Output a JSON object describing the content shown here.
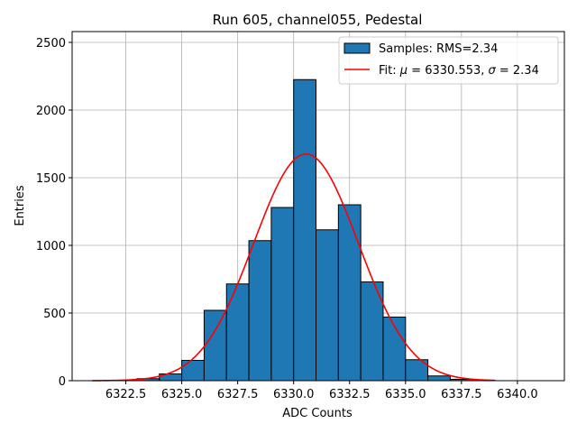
{
  "chart_data": {
    "type": "bar",
    "title": "Run 605, channel055, Pedestal",
    "xlabel": "ADC Counts",
    "ylabel": "Entries",
    "xlim": [
      6320.1,
      6342.1
    ],
    "ylim": [
      0,
      2580
    ],
    "grid": true,
    "xticks": [
      6322.5,
      6325.0,
      6327.5,
      6330.0,
      6332.5,
      6335.0,
      6337.5,
      6340.0
    ],
    "xtick_labels": [
      "6322.5",
      "6325.0",
      "6327.5",
      "6330.0",
      "6332.5",
      "6335.0",
      "6337.5",
      "6340.0"
    ],
    "yticks": [
      0,
      500,
      1000,
      1500,
      2000,
      2500
    ],
    "ytick_labels": [
      "0",
      "500",
      "1000",
      "1500",
      "2000",
      "2500"
    ],
    "histogram": {
      "name": "Samples: RMS=2.34",
      "color": "#1f77b4",
      "bin_edges": [
        6321,
        6322,
        6323,
        6324,
        6325,
        6326,
        6327,
        6328,
        6329,
        6330,
        6331,
        6332,
        6333,
        6334,
        6335,
        6336,
        6337,
        6338,
        6339,
        6340,
        6341
      ],
      "counts": [
        0,
        3,
        15,
        50,
        150,
        520,
        715,
        1035,
        1280,
        2225,
        1115,
        1300,
        730,
        470,
        155,
        35,
        10,
        2,
        0,
        0
      ]
    },
    "fit": {
      "name": "Fit: μ = 6330.553, σ = 2.34",
      "color": "#ff0000",
      "mu": 6330.553,
      "sigma": 2.34,
      "peak": 1675,
      "x_range": [
        6321,
        6339
      ]
    },
    "legend": {
      "location": "top-right",
      "entries": [
        {
          "label_prefix": "Samples: RMS=2.34"
        },
        {
          "label_prefix": "Fit: ",
          "mu_symbol": "μ",
          "mu_text": " = 6330.553, ",
          "sigma_symbol": "σ",
          "sigma_text": " = 2.34"
        }
      ]
    }
  }
}
